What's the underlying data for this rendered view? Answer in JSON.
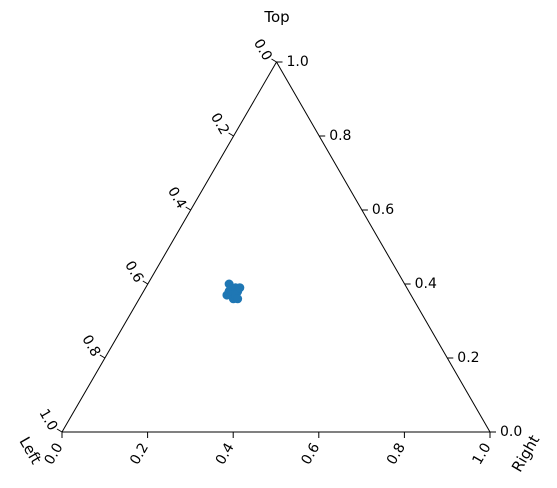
{
  "chart_data": {
    "type": "scatter",
    "subtype": "ternary",
    "axes": {
      "top": {
        "label": "Top",
        "ticks": [
          "0.0",
          "0.2",
          "0.4",
          "0.6",
          "0.8",
          "1.0"
        ]
      },
      "left": {
        "label": "Left",
        "ticks": [
          "0.0",
          "0.2",
          "0.4",
          "0.6",
          "0.8",
          "1.0"
        ]
      },
      "right": {
        "label": "Right",
        "ticks": [
          "0.0",
          "0.2",
          "0.4",
          "0.6",
          "0.8",
          "1.0"
        ]
      }
    },
    "grid": false,
    "legend": "none",
    "marker_color": "#1f77b4",
    "series": [
      {
        "points": [
          {
            "top": 0.4,
            "left": 0.41,
            "right": 0.19
          },
          {
            "top": 0.39,
            "left": 0.41,
            "right": 0.2
          },
          {
            "top": 0.38,
            "left": 0.42,
            "right": 0.2
          },
          {
            "top": 0.37,
            "left": 0.43,
            "right": 0.2
          },
          {
            "top": 0.38,
            "left": 0.42,
            "right": 0.2
          },
          {
            "top": 0.39,
            "left": 0.4,
            "right": 0.21
          },
          {
            "top": 0.37,
            "left": 0.42,
            "right": 0.21
          },
          {
            "top": 0.36,
            "left": 0.42,
            "right": 0.22
          },
          {
            "top": 0.38,
            "left": 0.4,
            "right": 0.22
          },
          {
            "top": 0.37,
            "left": 0.41,
            "right": 0.22
          },
          {
            "top": 0.39,
            "left": 0.39,
            "right": 0.22
          },
          {
            "top": 0.36,
            "left": 0.41,
            "right": 0.23
          }
        ]
      }
    ]
  }
}
